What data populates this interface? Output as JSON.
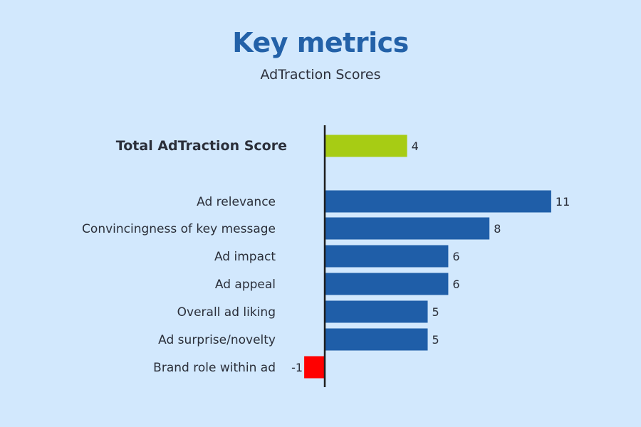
{
  "header": {
    "title": "Key metrics",
    "subtitle": "AdTraction Scores"
  },
  "colors": {
    "background": "#d2e8fd",
    "title": "#2361a8",
    "total": "#a7cc14",
    "bar": "#1f5ea8",
    "negative": "#ff0000",
    "axis": "#1e1e1e"
  },
  "chart_data": {
    "type": "bar",
    "orientation": "horizontal",
    "title": "Key metrics",
    "subtitle": "AdTraction Scores",
    "categories": [
      "Total AdTraction Score",
      "Ad relevance",
      "Convincingness of key message",
      "Ad impact",
      "Ad appeal",
      "Overall ad liking",
      "Ad surprise/novelty",
      "Brand role within ad"
    ],
    "values": [
      4,
      11,
      8,
      6,
      6,
      5,
      5,
      -1
    ],
    "value_labels": [
      "4",
      "11",
      "8",
      "6",
      "6",
      "5",
      "5",
      "-1"
    ],
    "highlight_category": "Total AdTraction Score",
    "xlabel": "",
    "ylabel": "",
    "grid": false,
    "legend": "none"
  }
}
